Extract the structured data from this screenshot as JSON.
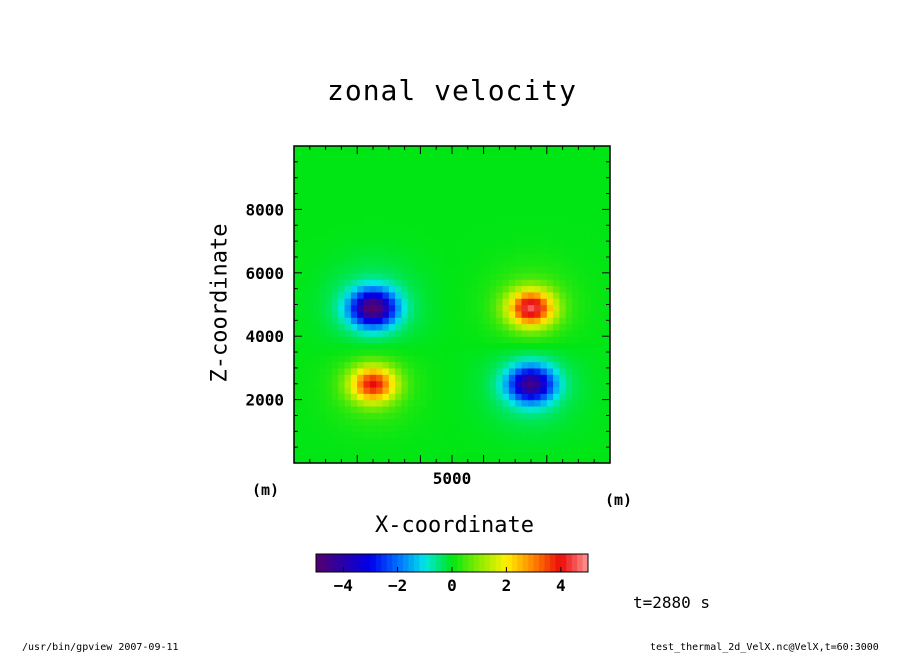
{
  "chart_data": {
    "type": "heatmap",
    "title": "zonal velocity",
    "xlabel": "X-coordinate",
    "ylabel": "Z-coordinate",
    "x_unit": "(m)",
    "y_unit": "(m)",
    "xlim": [
      0,
      10000
    ],
    "ylim": [
      0,
      10000
    ],
    "x_ticks": [
      5000
    ],
    "y_ticks": [
      2000,
      4000,
      6000,
      8000
    ],
    "colorbar": {
      "range": [
        -5,
        5
      ],
      "ticks": [
        -4,
        -2,
        0,
        2,
        4
      ]
    },
    "features": [
      {
        "x": 2500,
        "z": 4900,
        "value": -4.5
      },
      {
        "x": 7500,
        "z": 4900,
        "value": 4.0
      },
      {
        "x": 2500,
        "z": 2500,
        "value": 3.5
      },
      {
        "x": 7500,
        "z": 2500,
        "value": -4.0
      }
    ],
    "annotation": "t=2880 s"
  },
  "footer": {
    "left": "/usr/bin/gpview   2007-09-11",
    "right": "test_thermal_2d_VelX.nc@VelX,t=60:3000"
  }
}
